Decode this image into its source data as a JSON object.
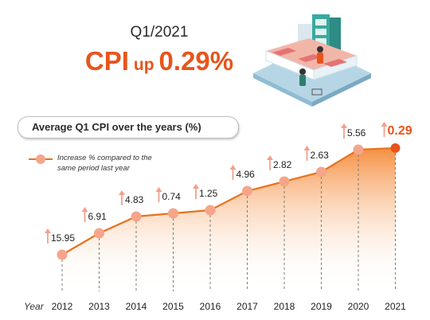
{
  "header": {
    "period": "Q1/2021",
    "headline_prefix": "CPI",
    "headline_mid": "up",
    "headline_value": "0.29%"
  },
  "chart_data": {
    "type": "area",
    "title": "Average Q1 CPI over the years (%)",
    "xlabel": "Year",
    "ylabel": "",
    "categories": [
      "2012",
      "2013",
      "2014",
      "2015",
      "2016",
      "2017",
      "2018",
      "2019",
      "2020",
      "2021"
    ],
    "series": [
      {
        "name": "Increase % compared to the same period last year",
        "values": [
          15.95,
          6.91,
          4.83,
          0.74,
          1.25,
          4.96,
          2.82,
          2.63,
          5.56,
          0.29
        ],
        "labels": [
          "15.95",
          "6.91",
          "4.83",
          "0.74",
          "1.25",
          "4.96",
          "2.82",
          "2.63",
          "5.56",
          "0.29"
        ]
      }
    ],
    "grid": false,
    "legend": "top-left",
    "colors": {
      "line": "#e8731c",
      "marker": "#f6a58a",
      "highlight_marker": "#e8541c",
      "arrow": "#f2a08b",
      "area_top": "#f47b20",
      "area_bottom": "#ffffff",
      "highlight_text": "#e8541c"
    }
  }
}
